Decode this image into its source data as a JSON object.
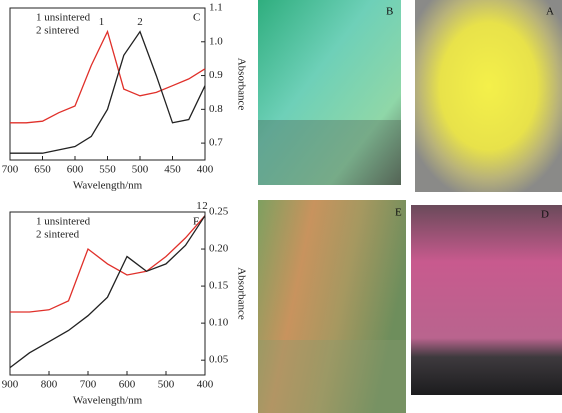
{
  "chart_data": [
    {
      "type": "line",
      "panel": "C",
      "xlabel": "Wavelength/nm",
      "ylabel": "Absorbance",
      "x": [
        700,
        675,
        650,
        625,
        600,
        575,
        550,
        525,
        500,
        475,
        450,
        425,
        400
      ],
      "series": [
        {
          "name": "1 unsintered",
          "peak_label": "1",
          "color": "#e0302a",
          "values": [
            0.76,
            0.76,
            0.765,
            0.79,
            0.81,
            0.93,
            1.03,
            0.86,
            0.84,
            0.85,
            0.87,
            0.89,
            0.92
          ]
        },
        {
          "name": "2 sintered",
          "peak_label": "2",
          "color": "#222222",
          "values": [
            0.67,
            0.67,
            0.67,
            0.68,
            0.69,
            0.72,
            0.8,
            0.96,
            1.03,
            0.9,
            0.76,
            0.77,
            0.87
          ]
        }
      ],
      "xlim": [
        700,
        400
      ],
      "xticks": [
        700,
        650,
        600,
        550,
        500,
        450,
        400
      ],
      "ylim": [
        0.65,
        1.1
      ],
      "yticks": [
        0.7,
        0.8,
        0.9,
        {
          "value": 1,
          "label": "1.0"
        },
        1.1
      ]
    },
    {
      "type": "line",
      "panel": "F",
      "xlabel": "Wavelength/nm",
      "ylabel": "Absorbance",
      "x": [
        900,
        850,
        800,
        750,
        700,
        650,
        600,
        550,
        500,
        450,
        400
      ],
      "series": [
        {
          "name": "1 unsintered",
          "peak_label": "1",
          "color": "#e0302a",
          "values": [
            0.115,
            0.115,
            0.118,
            0.13,
            0.2,
            0.18,
            0.165,
            0.17,
            0.19,
            0.215,
            0.245
          ]
        },
        {
          "name": "2 sintered",
          "peak_label": "2",
          "color": "#222222",
          "values": [
            0.04,
            0.06,
            0.075,
            0.09,
            0.11,
            0.135,
            0.19,
            0.17,
            0.18,
            0.205,
            0.245
          ]
        }
      ],
      "xlim": [
        900,
        400
      ],
      "xticks": [
        900,
        800,
        700,
        600,
        500,
        400
      ],
      "ylim": [
        0.03,
        0.25
      ],
      "yticks": [
        0.05,
        {
          "value": 0.1,
          "label": "0.10"
        },
        0.15,
        {
          "value": 0.2,
          "label": "0.20"
        },
        0.25
      ]
    }
  ],
  "photos": [
    {
      "label": "B"
    },
    {
      "label": "A"
    },
    {
      "label": "E"
    },
    {
      "label": "D"
    }
  ]
}
